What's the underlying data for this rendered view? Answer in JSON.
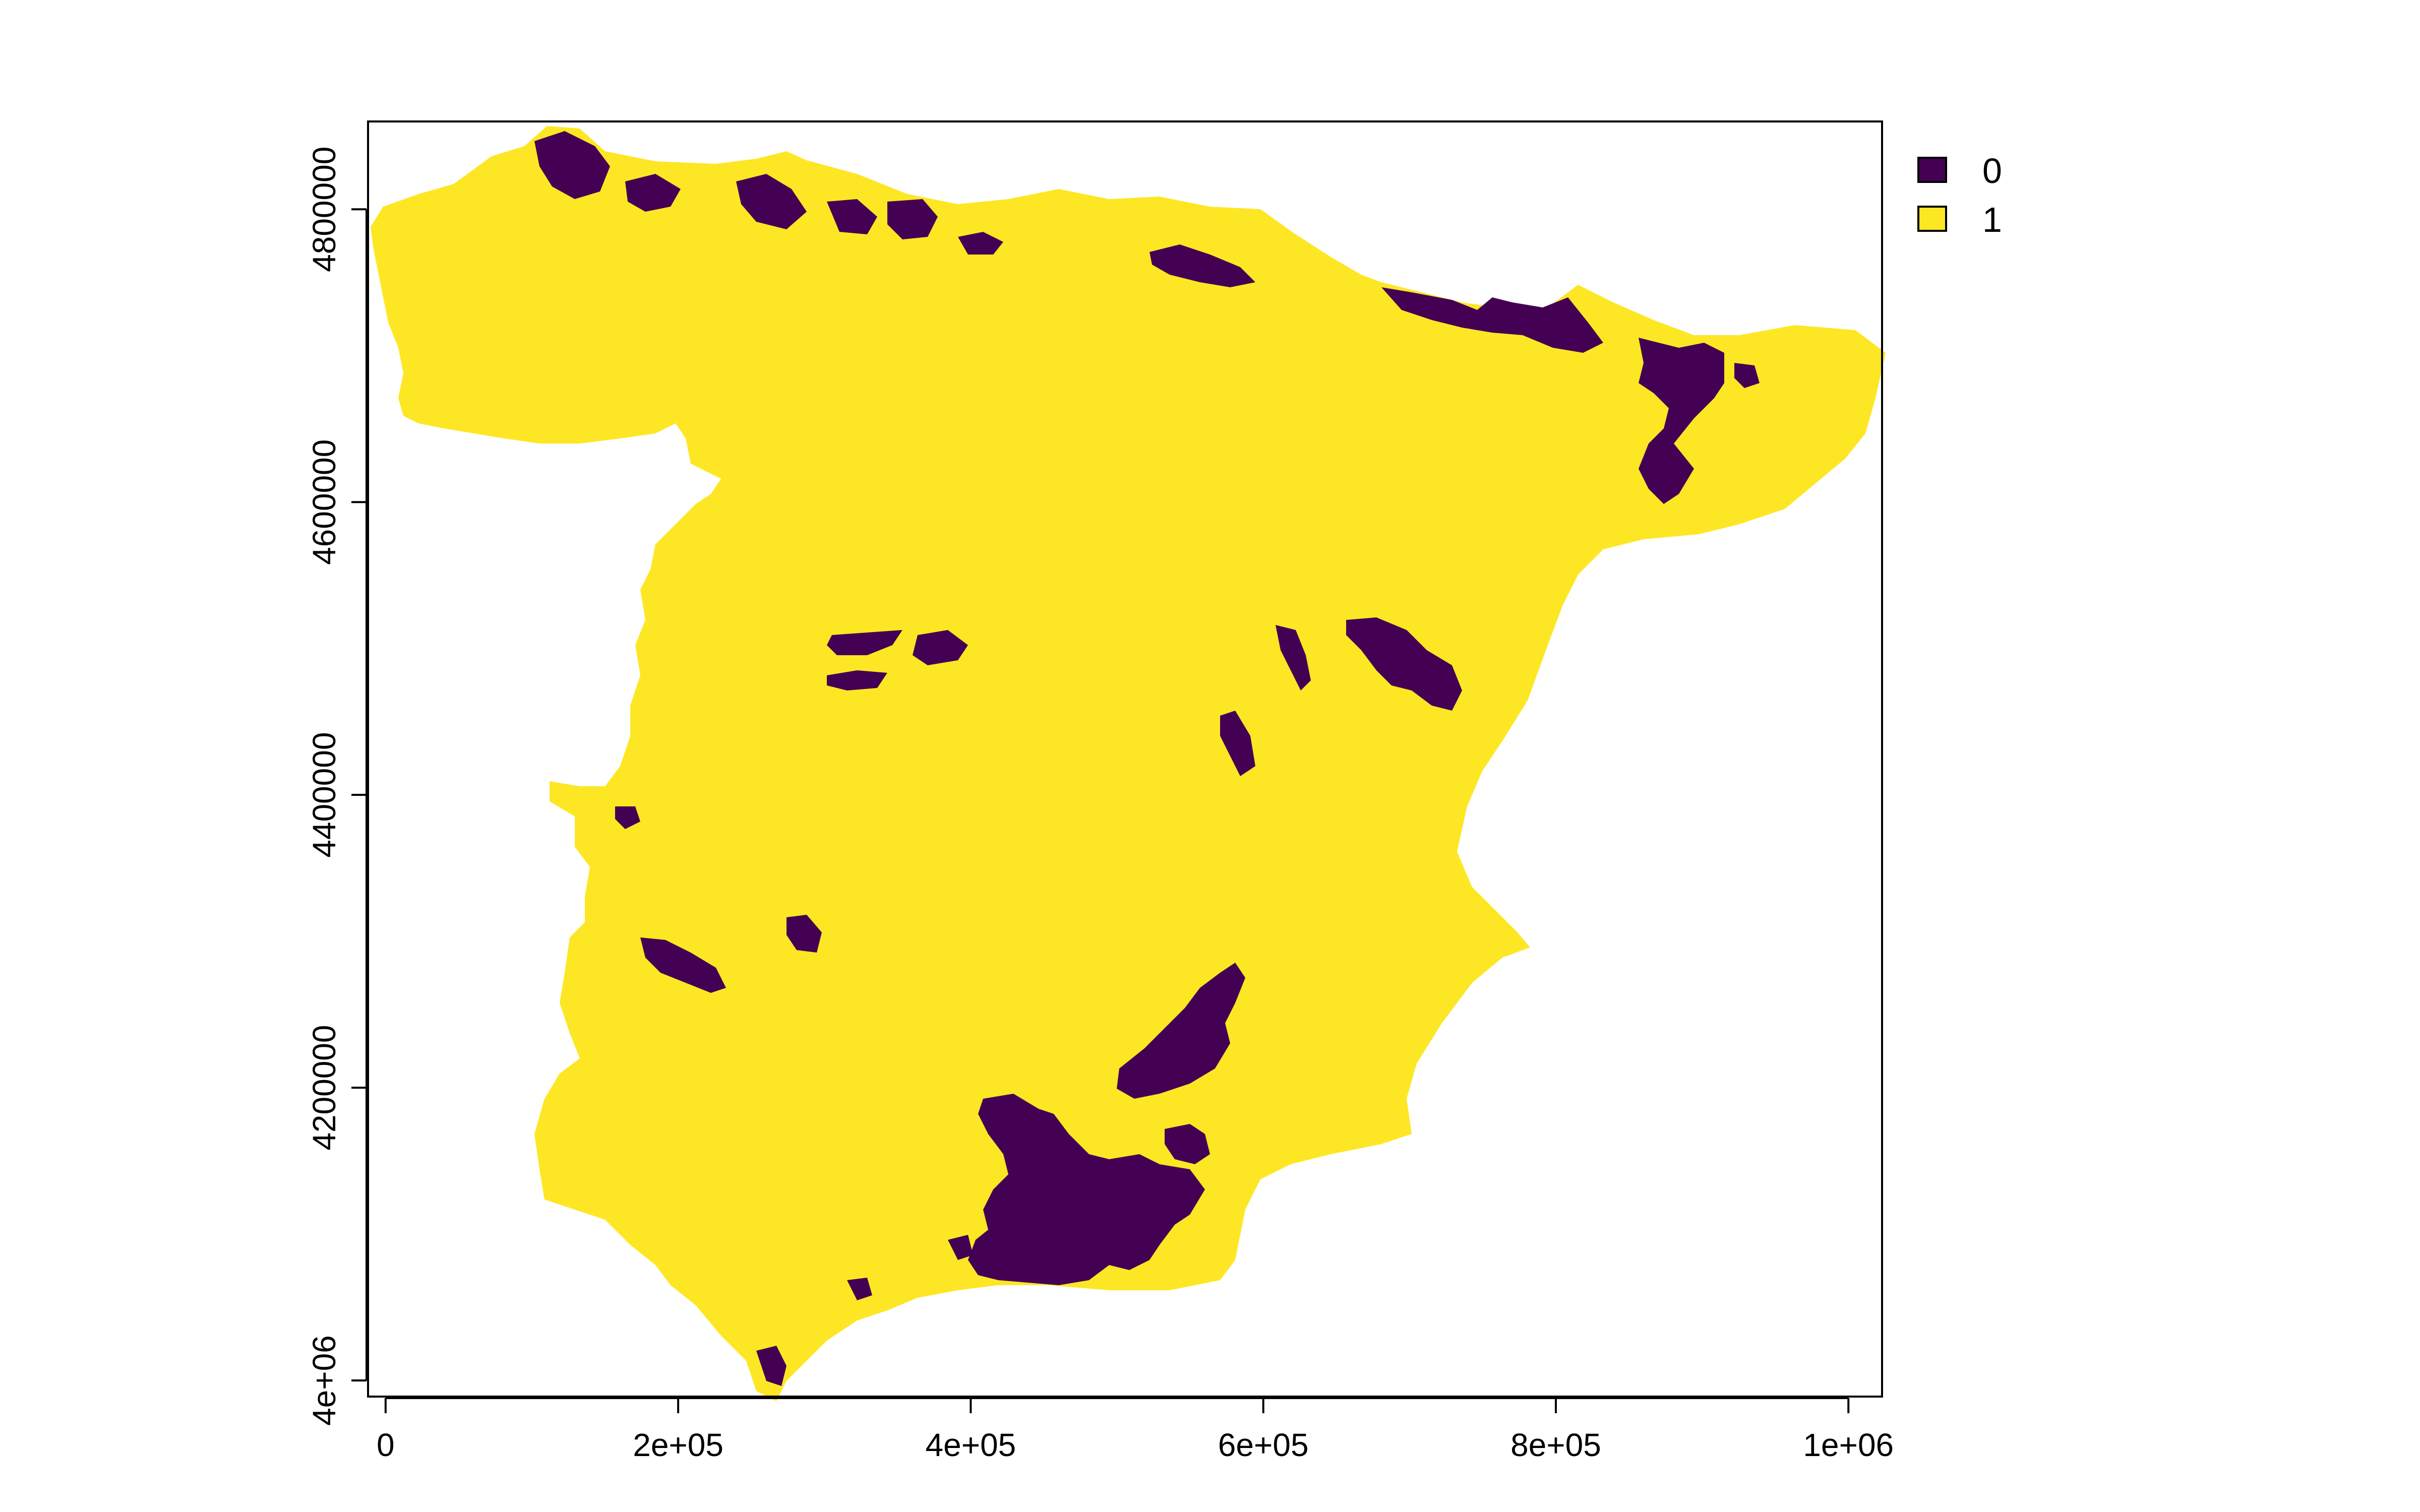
{
  "chart_data": {
    "type": "heatmap",
    "subtype": "categorical-raster-map",
    "region": "Iberian Peninsula (Spain)",
    "x_ticks": [
      {
        "value": 0,
        "label": "0"
      },
      {
        "value": 200000,
        "label": "2e+05"
      },
      {
        "value": 400000,
        "label": "4e+05"
      },
      {
        "value": 600000,
        "label": "6e+05"
      },
      {
        "value": 800000,
        "label": "8e+05"
      },
      {
        "value": 1000000,
        "label": "1e+06"
      }
    ],
    "y_ticks": [
      {
        "value": 4000000,
        "label": "4e+06"
      },
      {
        "value": 4200000,
        "label": "4200000"
      },
      {
        "value": 4400000,
        "label": "4400000"
      },
      {
        "value": 4600000,
        "label": "4600000"
      },
      {
        "value": 4800000,
        "label": "4800000"
      }
    ],
    "xlim": [
      -12000,
      1023000
    ],
    "ylim": [
      3989000,
      4860000
    ],
    "legend": {
      "placement": "top-right, outside plot",
      "entries": [
        {
          "label": "0",
          "color": "#440154"
        },
        {
          "label": "1",
          "color": "#FDE725"
        }
      ]
    },
    "grid": false,
    "colors": {
      "class_0": "#440154",
      "class_1": "#FDE725"
    }
  }
}
